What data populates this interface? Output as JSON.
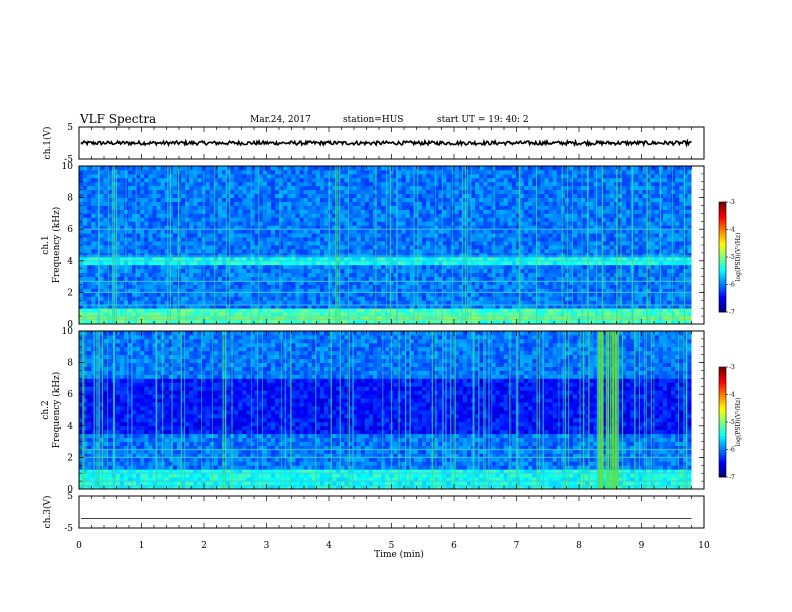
{
  "header": {
    "title": "VLF Spectra",
    "date": "Mar.24, 2017",
    "station": "station=HUS",
    "start": "start  UT =   19: 40: 2"
  },
  "chart_data": [
    {
      "type": "line",
      "name": "ch1-waveform",
      "ylabel": "ch.1(V)",
      "ylim": [
        -5,
        5
      ],
      "yticks": [
        "5",
        "-5"
      ],
      "xlim": [
        0,
        10
      ],
      "approx_level": 0.0,
      "noise_amplitude": 0.6,
      "trace_end_min": 9.8
    },
    {
      "type": "heatmap",
      "name": "ch1-spectrogram",
      "ylabel_line1": "ch.1",
      "ylabel_line2": "Frequency (kHz)",
      "ylim": [
        0,
        10
      ],
      "yticks": [
        "0",
        "2",
        "4",
        "6",
        "8",
        "10"
      ],
      "xlim": [
        0,
        10
      ],
      "data_end_min": 9.8,
      "colorbar": {
        "label": "log(PSD)(V²/Hz)",
        "range": [
          -7,
          -3
        ],
        "ticks": [
          "-3",
          "-4",
          "-5",
          "-6",
          "-7"
        ]
      }
    },
    {
      "type": "heatmap",
      "name": "ch2-spectrogram",
      "ylabel_line1": "ch.2",
      "ylabel_line2": "Frequency (kHz)",
      "ylim": [
        0,
        10
      ],
      "yticks": [
        "0",
        "2",
        "4",
        "6",
        "8",
        "10"
      ],
      "xlim": [
        0,
        10
      ],
      "data_end_min": 9.8,
      "colorbar": {
        "label": "log(PSD)(V²/Hz)",
        "range": [
          -7,
          -3
        ],
        "ticks": [
          "-3",
          "-4",
          "-5",
          "-6",
          "-7"
        ]
      }
    },
    {
      "type": "line",
      "name": "ch3-waveform",
      "ylabel": "ch.3(V)",
      "ylim": [
        -5,
        5
      ],
      "yticks": [
        "5",
        "-5"
      ],
      "xlim": [
        0,
        10
      ],
      "approx_level": -2.0,
      "noise_amplitude": 0.0,
      "trace_end_min": 9.8
    }
  ],
  "xaxis": {
    "label": "Time (min)",
    "ticks": [
      "0",
      "1",
      "2",
      "3",
      "4",
      "5",
      "6",
      "7",
      "8",
      "9",
      "10"
    ]
  },
  "colors": {
    "axes": "#000000",
    "background": "#ffffff"
  }
}
